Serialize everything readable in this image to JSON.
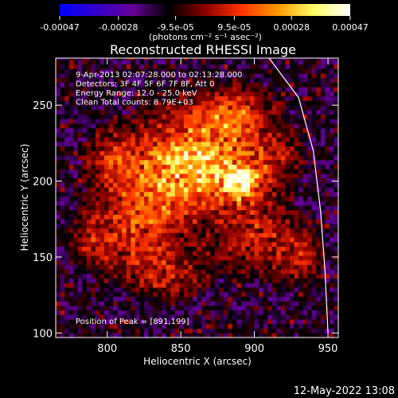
{
  "chart_data": {
    "type": "heatmap",
    "title": "Reconstructed RHESSI Image",
    "xlabel": "Heliocentric X (arcsec)",
    "ylabel": "Heliocentric Y (arcsec)",
    "xlim": [
      765,
      957
    ],
    "ylim": [
      97,
      281
    ],
    "x_ticks": [
      800,
      850,
      900,
      950
    ],
    "y_ticks": [
      100,
      150,
      200,
      250
    ],
    "colorbar": {
      "range": [
        -0.00047,
        0.00047
      ],
      "ticks": [
        "-0.00047",
        "-0.00028",
        "-9.5e-05",
        "9.5e-05",
        "0.00028",
        "0.00047"
      ],
      "tick_values": [
        -0.00047,
        -0.00028,
        -9.5e-05,
        9.5e-05,
        0.00028,
        0.00047
      ],
      "units_label": "(photons cm⁻² s⁻¹ asec⁻²)",
      "stops": [
        "#0000ff",
        "#3300cc",
        "#660099",
        "#000000",
        "#8b0000",
        "#ff3300",
        "#ff9900",
        "#ffff66",
        "#ffffff"
      ]
    },
    "info_lines": [
      "9-Apr-2013 02:07:28.000 to 02:13:28.000",
      "Detectors: 3F 4F 5F 6F 7F 8F, Att 0",
      "Energy Range: 12.0 - 25.0 keV",
      "Clean     Total counts: 8.79E+03"
    ],
    "peak_label": "Position of Peak = [891,199]",
    "peak": [
      891,
      199
    ],
    "peak_value": 0.00047,
    "sources": [
      {
        "x": 891,
        "y": 199,
        "sx": 9,
        "sy": 8,
        "amp": 1.0
      },
      {
        "x": 850,
        "y": 205,
        "sx": 22,
        "sy": 20,
        "amp": 0.65
      },
      {
        "x": 872,
        "y": 222,
        "sx": 28,
        "sy": 22,
        "amp": 0.55
      },
      {
        "x": 820,
        "y": 175,
        "sx": 18,
        "sy": 20,
        "amp": 0.5
      },
      {
        "x": 805,
        "y": 215,
        "sx": 12,
        "sy": 12,
        "amp": 0.4
      },
      {
        "x": 900,
        "y": 165,
        "sx": 18,
        "sy": 16,
        "amp": 0.4
      },
      {
        "x": 930,
        "y": 150,
        "sx": 10,
        "sy": 12,
        "amp": 0.35
      },
      {
        "x": 840,
        "y": 140,
        "sx": 18,
        "sy": 12,
        "amp": 0.35
      },
      {
        "x": 885,
        "y": 245,
        "sx": 16,
        "sy": 10,
        "amp": 0.35
      },
      {
        "x": 790,
        "y": 160,
        "sx": 10,
        "sy": 12,
        "amp": 0.3
      },
      {
        "x": 915,
        "y": 215,
        "sx": 10,
        "sy": 10,
        "amp": 0.3
      }
    ],
    "limb_curve": [
      [
        910,
        281
      ],
      [
        930,
        255
      ],
      [
        940,
        220
      ],
      [
        945,
        180
      ],
      [
        948,
        140
      ],
      [
        950,
        100
      ]
    ],
    "timestamp": "12-May-2022 13:08"
  }
}
